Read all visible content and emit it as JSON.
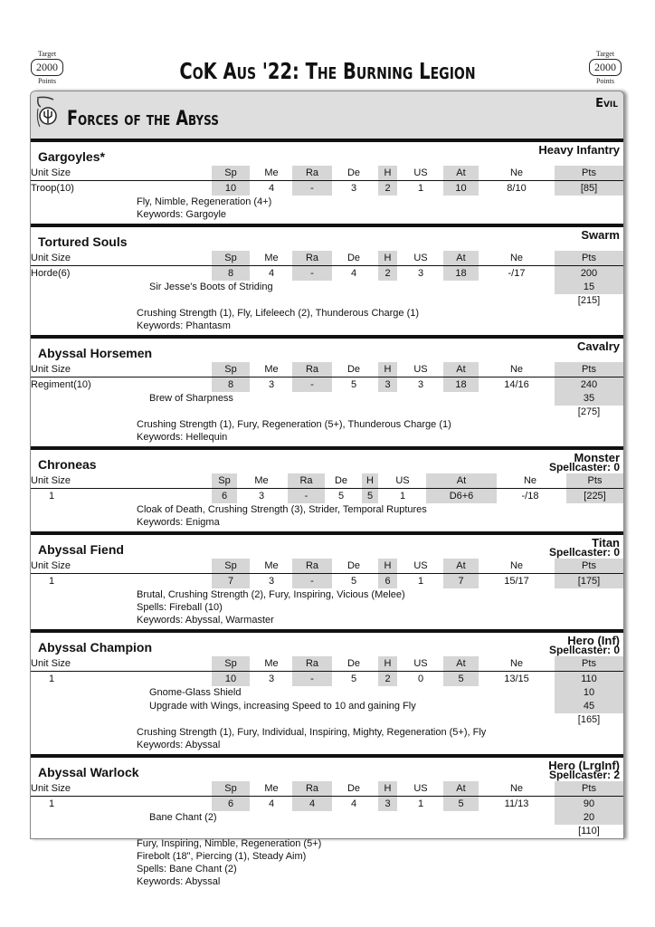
{
  "target": {
    "label": "Target",
    "value": "2000",
    "unit": "Points"
  },
  "title": "CoK Aus '22: The Burning Legion",
  "army": {
    "name": "Forces of the Abyss",
    "alignment": "Evil"
  },
  "stat_headers": {
    "size": "Unit Size",
    "sp": "Sp",
    "me": "Me",
    "ra": "Ra",
    "de": "De",
    "h": "H",
    "us": "US",
    "at": "At",
    "ne": "Ne",
    "pts": "Pts"
  },
  "units": [
    {
      "name": "Gargoyles*",
      "type": "Heavy Infantry",
      "spellcaster": "",
      "size": "Troop(10)",
      "stats": {
        "sp": "10",
        "me": "4",
        "ra": "-",
        "de": "3",
        "h": "2",
        "us": "1",
        "at": "10",
        "ne": "8/10",
        "pts": "[85]"
      },
      "options": [],
      "total": "",
      "rules": [
        "Fly, Nimble, Regeneration (4+)",
        "Keywords: Gargoyle"
      ]
    },
    {
      "name": "Tortured Souls",
      "type": "Swarm",
      "spellcaster": "",
      "size": "Horde(6)",
      "stats": {
        "sp": "8",
        "me": "4",
        "ra": "-",
        "de": "4",
        "h": "2",
        "us": "3",
        "at": "18",
        "ne": "-/17",
        "pts": "200"
      },
      "options": [
        {
          "name": "Sir Jesse's Boots of Striding",
          "pts": "15"
        }
      ],
      "total": "[215]",
      "rules": [
        "Crushing Strength (1), Fly, Lifeleech (2), Thunderous Charge (1)",
        "Keywords: Phantasm"
      ]
    },
    {
      "name": "Abyssal Horsemen",
      "type": "Cavalry",
      "spellcaster": "",
      "size": "Regiment(10)",
      "stats": {
        "sp": "8",
        "me": "3",
        "ra": "-",
        "de": "5",
        "h": "3",
        "us": "3",
        "at": "18",
        "ne": "14/16",
        "pts": "240"
      },
      "options": [
        {
          "name": "Brew of Sharpness",
          "pts": "35"
        }
      ],
      "total": "[275]",
      "rules": [
        "Crushing Strength (1), Fury, Regeneration (5+), Thunderous Charge (1)",
        "Keywords: Hellequin"
      ]
    },
    {
      "name": "Chroneas",
      "type": "Monster",
      "spellcaster": "Spellcaster: 0",
      "size": "1",
      "wide": true,
      "stats": {
        "sp": "6",
        "me": "3",
        "ra": "-",
        "de": "5",
        "h": "5",
        "us": "1",
        "at": "D6+6",
        "ne": "-/18",
        "pts": "[225]"
      },
      "options": [],
      "total": "",
      "rules": [
        "Cloak of Death, Crushing Strength (3), Strider, Temporal Ruptures",
        "Keywords: Enigma"
      ]
    },
    {
      "name": "Abyssal Fiend",
      "type": "Titan",
      "spellcaster": "Spellcaster: 0",
      "size": "1",
      "stats": {
        "sp": "7",
        "me": "3",
        "ra": "-",
        "de": "5",
        "h": "6",
        "us": "1",
        "at": "7",
        "ne": "15/17",
        "pts": "[175]"
      },
      "options": [],
      "total": "",
      "rules": [
        "Brutal, Crushing Strength (2), Fury, Inspiring, Vicious (Melee)",
        "Spells: Fireball (10)",
        "Keywords: Abyssal, Warmaster"
      ]
    },
    {
      "name": "Abyssal Champion",
      "type": "Hero (Inf)",
      "spellcaster": "Spellcaster: 0",
      "size": "1",
      "stats": {
        "sp": "10",
        "me": "3",
        "ra": "-",
        "de": "5",
        "h": "2",
        "us": "0",
        "at": "5",
        "ne": "13/15",
        "pts": "110"
      },
      "options": [
        {
          "name": "Gnome-Glass Shield",
          "pts": "10"
        },
        {
          "name": "Upgrade with Wings, increasing Speed to 10 and gaining Fly",
          "pts": "45"
        }
      ],
      "total": "[165]",
      "rules": [
        "Crushing Strength (1), Fury, Individual, Inspiring, Mighty, Regeneration (5+), Fly",
        "Keywords: Abyssal"
      ]
    },
    {
      "name": "Abyssal Warlock",
      "type": "Hero (LrgInf)",
      "spellcaster": "Spellcaster: 2",
      "size": "1",
      "stats": {
        "sp": "6",
        "me": "4",
        "ra": "4",
        "de": "4",
        "h": "3",
        "us": "1",
        "at": "5",
        "ne": "11/13",
        "pts": "90"
      },
      "options": [
        {
          "name": "Bane Chant (2)",
          "pts": "20"
        }
      ],
      "total": "[110]",
      "rules": [
        "Fury, Inspiring, Nimble, Regeneration (5+)",
        "Firebolt (18\", Piercing (1), Steady Aim)",
        "Spells: Bane Chant (2)",
        "Keywords: Abyssal"
      ]
    }
  ]
}
